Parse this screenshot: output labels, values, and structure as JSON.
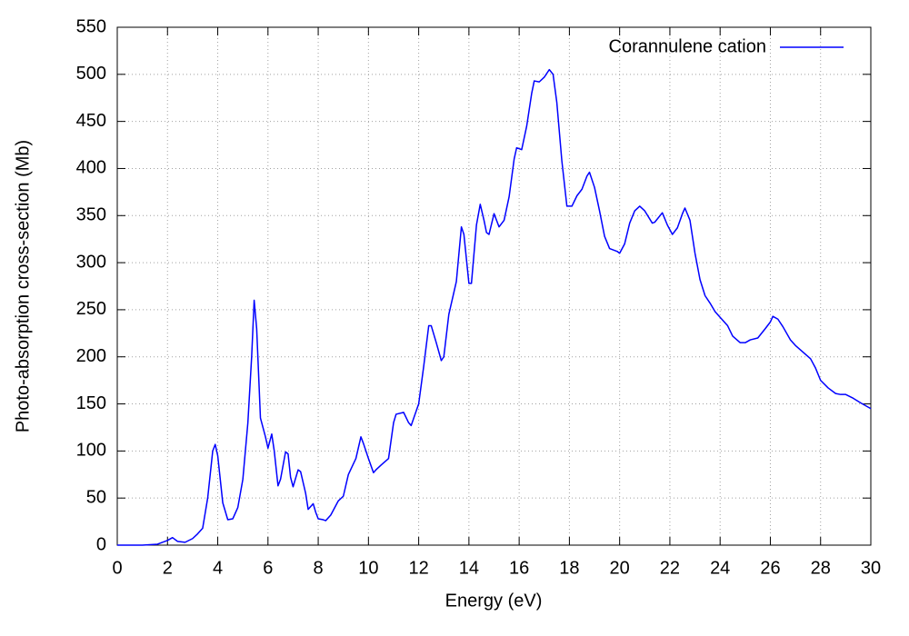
{
  "chart_data": {
    "type": "line",
    "xlabel": "Energy (eV)",
    "ylabel": "Photo-absorption cross-section (Mb)",
    "x": [
      0,
      1,
      1.6,
      2.0,
      2.2,
      2.4,
      2.7,
      3.0,
      3.2,
      3.4,
      3.6,
      3.8,
      3.9,
      4.0,
      4.2,
      4.4,
      4.6,
      4.8,
      5.0,
      5.2,
      5.35,
      5.45,
      5.55,
      5.7,
      5.9,
      6.0,
      6.15,
      6.25,
      6.4,
      6.5,
      6.7,
      6.8,
      6.9,
      7.0,
      7.2,
      7.3,
      7.5,
      7.6,
      7.8,
      7.9,
      8.0,
      8.2,
      8.3,
      8.5,
      8.8,
      9.0,
      9.2,
      9.5,
      9.7,
      9.8,
      10.0,
      10.2,
      10.3,
      10.5,
      10.8,
      11.0,
      11.1,
      11.4,
      11.6,
      11.7,
      12.0,
      12.2,
      12.4,
      12.5,
      12.7,
      12.9,
      13.0,
      13.2,
      13.5,
      13.7,
      13.8,
      14.0,
      14.1,
      14.3,
      14.45,
      14.6,
      14.7,
      14.8,
      15.0,
      15.2,
      15.4,
      15.6,
      15.8,
      15.9,
      16.1,
      16.3,
      16.5,
      16.6,
      16.8,
      17.0,
      17.2,
      17.35,
      17.5,
      17.7,
      17.9,
      18.1,
      18.3,
      18.5,
      18.7,
      18.8,
      19.0,
      19.2,
      19.4,
      19.6,
      19.9,
      20.0,
      20.2,
      20.4,
      20.6,
      20.8,
      21.0,
      21.3,
      21.4,
      21.7,
      21.9,
      22.1,
      22.3,
      22.5,
      22.6,
      22.8,
      23.0,
      23.2,
      23.4,
      23.6,
      23.8,
      24.0,
      24.3,
      24.5,
      24.8,
      25.0,
      25.2,
      25.5,
      25.8,
      26.0,
      26.1,
      26.3,
      26.5,
      26.8,
      27.0,
      27.3,
      27.6,
      27.8,
      28.0,
      28.3,
      28.6,
      28.8,
      29.0,
      29.3,
      29.6,
      30.0
    ],
    "series": [
      {
        "name": "Corannulene cation",
        "color": "#0000ff",
        "values": [
          0,
          0,
          1,
          5,
          8,
          4,
          3,
          7,
          12,
          18,
          50,
          100,
          107,
          95,
          45,
          27,
          28,
          40,
          70,
          130,
          200,
          260,
          230,
          135,
          115,
          103,
          118,
          100,
          63,
          70,
          99,
          97,
          72,
          62,
          80,
          78,
          55,
          38,
          44,
          35,
          28,
          27,
          26,
          32,
          47,
          52,
          75,
          92,
          115,
          108,
          92,
          77,
          80,
          85,
          92,
          130,
          139,
          141,
          130,
          127,
          150,
          190,
          233,
          233,
          215,
          196,
          200,
          245,
          280,
          338,
          330,
          278,
          278,
          340,
          362,
          345,
          332,
          330,
          352,
          338,
          345,
          370,
          410,
          422,
          420,
          445,
          480,
          493,
          492,
          497,
          505,
          500,
          470,
          408,
          360,
          360,
          371,
          378,
          392,
          396,
          380,
          355,
          328,
          315,
          312,
          310,
          320,
          342,
          355,
          360,
          355,
          342,
          343,
          353,
          340,
          330,
          337,
          352,
          358,
          345,
          310,
          282,
          265,
          257,
          248,
          242,
          233,
          222,
          215,
          215,
          218,
          220,
          230,
          237,
          243,
          240,
          232,
          218,
          212,
          205,
          198,
          188,
          175,
          167,
          161,
          160,
          160,
          156,
          151,
          145
        ]
      }
    ],
    "xlim": [
      0,
      30
    ],
    "xticks": [
      0,
      2,
      4,
      6,
      8,
      10,
      12,
      14,
      16,
      18,
      20,
      22,
      24,
      26,
      28,
      30
    ],
    "ylim": [
      0,
      550
    ],
    "yticks": [
      0,
      50,
      100,
      150,
      200,
      250,
      300,
      350,
      400,
      450,
      500,
      550
    ],
    "grid": true,
    "legend": "upper right"
  }
}
